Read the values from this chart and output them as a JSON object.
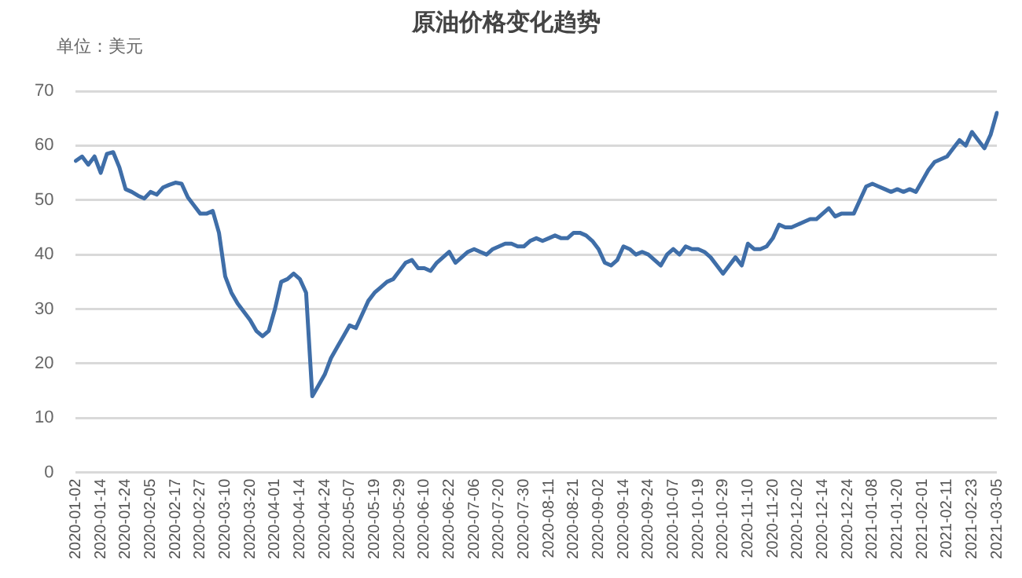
{
  "chart_data": {
    "type": "line",
    "title": "原油价格变化趋势",
    "ylabel": "单位：美元",
    "categories": [
      "2020-01-02",
      null,
      null,
      null,
      "2020-01-14",
      null,
      null,
      null,
      "2020-01-24",
      null,
      null,
      null,
      "2020-02-05",
      null,
      null,
      null,
      "2020-02-17",
      null,
      null,
      null,
      "2020-02-27",
      null,
      null,
      null,
      "2020-03-10",
      null,
      null,
      null,
      "2020-03-20",
      null,
      null,
      null,
      "2020-04-01",
      null,
      null,
      null,
      "2020-04-14",
      null,
      null,
      null,
      "2020-04-24",
      null,
      null,
      null,
      "2020-05-07",
      null,
      null,
      null,
      "2020-05-19",
      null,
      null,
      null,
      "2020-05-29",
      null,
      null,
      null,
      "2020-06-10",
      null,
      null,
      null,
      "2020-06-22",
      null,
      null,
      null,
      "2020-07-06",
      null,
      null,
      null,
      "2020-07-20",
      null,
      null,
      null,
      "2020-07-30",
      null,
      null,
      null,
      "2020-08-11",
      null,
      null,
      null,
      "2020-08-21",
      null,
      null,
      null,
      "2020-09-02",
      null,
      null,
      null,
      "2020-09-14",
      null,
      null,
      null,
      "2020-09-24",
      null,
      null,
      null,
      "2020-10-07",
      null,
      null,
      null,
      "2020-10-19",
      null,
      null,
      null,
      "2020-10-29",
      null,
      null,
      null,
      "2020-11-10",
      null,
      null,
      null,
      "2020-11-20",
      null,
      null,
      null,
      "2020-12-02",
      null,
      null,
      null,
      "2020-12-14",
      null,
      null,
      null,
      "2020-12-24",
      null,
      null,
      null,
      "2021-01-08",
      null,
      null,
      null,
      "2021-01-20",
      null,
      null,
      null,
      "2021-02-01",
      null,
      null,
      null,
      "2021-02-11",
      null,
      null,
      null,
      "2021-02-23",
      null,
      null,
      null,
      "2021-03-05"
    ],
    "series": [
      {
        "color": "#3f6ea8",
        "values": [
          57.2,
          58,
          56.5,
          58,
          55,
          58.5,
          58.8,
          56,
          52,
          51.5,
          50.8,
          50.3,
          51.5,
          51,
          52.3,
          52.8,
          53.2,
          53,
          50.5,
          49,
          47.5,
          47.5,
          48,
          44,
          36,
          33,
          31,
          29.5,
          28,
          26,
          25,
          26,
          30,
          35,
          35.5,
          36.5,
          35.5,
          33,
          14,
          16,
          18,
          21,
          23,
          25,
          27,
          26.5,
          29,
          31.5,
          33,
          34,
          35,
          35.5,
          37,
          38.5,
          39,
          37.5,
          37.5,
          37,
          38.5,
          39.5,
          40.5,
          38.5,
          39.5,
          40.5,
          41,
          40.5,
          40,
          41,
          41.5,
          42,
          42,
          41.5,
          41.5,
          42.5,
          43,
          42.5,
          43,
          43.5,
          43,
          43,
          44,
          44,
          43.5,
          42.5,
          41,
          38.5,
          38,
          39,
          41.5,
          41,
          40,
          40.5,
          40,
          39,
          38,
          40,
          41,
          40,
          41.5,
          41,
          41,
          40.5,
          39.5,
          38,
          36.5,
          38,
          39.5,
          38,
          42,
          41,
          41,
          41.5,
          43,
          45.5,
          45,
          45,
          45.5,
          46,
          46.5,
          46.5,
          47.5,
          48.5,
          47,
          47.5,
          47.5,
          47.5,
          50,
          52.5,
          53,
          52.5,
          52,
          51.5,
          52,
          51.5,
          52,
          51.5,
          53.5,
          55.5,
          57,
          57.5,
          58,
          59.5,
          61,
          60,
          62.5,
          61,
          59.5,
          62,
          66
        ]
      }
    ],
    "ylim": [
      0,
      70
    ],
    "yticks": [
      0,
      10,
      20,
      30,
      40,
      50,
      60,
      70
    ],
    "grid": "y",
    "legend": false,
    "marker": "none",
    "line_style": "solid"
  }
}
